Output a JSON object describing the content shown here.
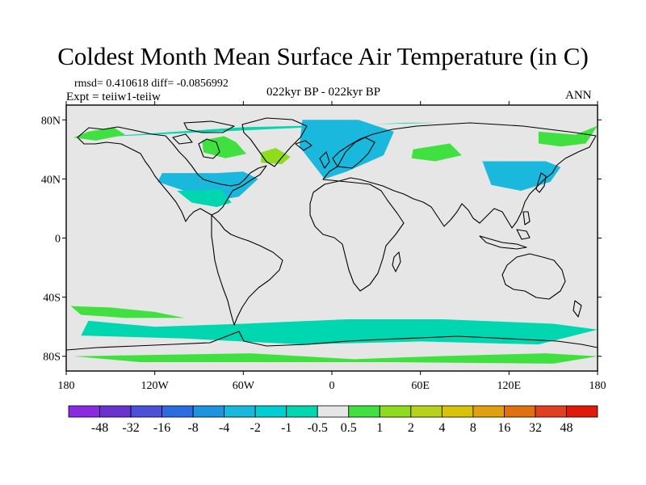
{
  "title": "Coldest Month Mean Surface Air Temperature (in C)",
  "stats": "rmsd= 0.410618 diff= -0.0856992",
  "experiment": "Expt = teiiw1-teiiw",
  "period": "022kyr BP - 022kyr BP",
  "season": "ANN",
  "map": {
    "projection": "cylindrical-equidistant",
    "lon_range": [
      -180,
      180
    ],
    "lat_range": [
      -90,
      90
    ],
    "x_ticks": [
      {
        "lon": -180,
        "label": "180"
      },
      {
        "lon": -120,
        "label": "120W"
      },
      {
        "lon": -60,
        "label": "60W"
      },
      {
        "lon": 0,
        "label": "0"
      },
      {
        "lon": 60,
        "label": "60E"
      },
      {
        "lon": 120,
        "label": "120E"
      },
      {
        "lon": 180,
        "label": "180"
      }
    ],
    "y_ticks": [
      {
        "lat": 80,
        "label": "80N"
      },
      {
        "lat": 40,
        "label": "40N"
      },
      {
        "lat": 0,
        "label": "0"
      },
      {
        "lat": -40,
        "label": "40S"
      },
      {
        "lat": -80,
        "label": "80S"
      }
    ],
    "background_color": "#e6e6e6",
    "anomaly_regions": [
      {
        "bin": "-1 to -0.5",
        "color": "#00d6b0",
        "lon": [
          -165,
          -60,
          72,
          50
        ],
        "lat": [
          68,
          75,
          78,
          78
        ]
      },
      {
        "bin": "-4 to -2",
        "color": "#19b8dc",
        "lon": [
          -115,
          -78,
          -60,
          -50,
          -63,
          -80,
          -100,
          -118
        ],
        "lat": [
          44,
          44,
          45,
          40,
          28,
          25,
          32,
          38
        ]
      },
      {
        "bin": "-1 to -0.5",
        "color": "#00d6b0",
        "lon": [
          -105,
          -75,
          -68,
          -78,
          -95
        ],
        "lat": [
          32,
          33,
          24,
          21,
          24
        ]
      },
      {
        "bin": "-4 to -2",
        "color": "#19b8dc",
        "lon": [
          -20,
          18,
          42,
          35,
          10,
          -5,
          -22
        ],
        "lat": [
          80,
          80,
          72,
          56,
          45,
          40,
          62
        ]
      },
      {
        "bin": "-4 to -2",
        "color": "#19b8dc",
        "lon": [
          102,
          145,
          155,
          148,
          128,
          108
        ],
        "lat": [
          52,
          52,
          48,
          38,
          32,
          36
        ]
      },
      {
        "bin": "-1 to -0.5",
        "color": "#00d6b0",
        "lon": [
          -165,
          -120,
          -60,
          10,
          75,
          150,
          180,
          140,
          60,
          -20,
          -100,
          -170
        ],
        "lat": [
          -56,
          -60,
          -58,
          -55,
          -55,
          -58,
          -62,
          -72,
          -70,
          -72,
          -68,
          -66
        ]
      },
      {
        "bin": "0.5 to 1",
        "color": "#40e040",
        "lon": [
          -165,
          -148,
          -140,
          -160,
          -175
        ],
        "lat": [
          72,
          75,
          70,
          66,
          68
        ]
      },
      {
        "bin": "0.5 to 1",
        "color": "#40e040",
        "lon": [
          -88,
          -73,
          -65,
          -58,
          -72,
          -87
        ],
        "lat": [
          66,
          69,
          65,
          57,
          54,
          58
        ]
      },
      {
        "bin": "1 to 2",
        "color": "#8fdc1f",
        "lon": [
          -48,
          -38,
          -28,
          -34,
          -48
        ],
        "lat": [
          58,
          61,
          55,
          50,
          51
        ]
      },
      {
        "bin": "0.5 to 1",
        "color": "#40e040",
        "lon": [
          -175,
          -55,
          15,
          70,
          145,
          180,
          150,
          40,
          -40,
          -130
        ],
        "lat": [
          -80,
          -78,
          -82,
          -80,
          -78,
          -80,
          -85,
          -84,
          -84,
          -84
        ]
      },
      {
        "bin": "0.5 to 1",
        "color": "#40e040",
        "lon": [
          -177,
          -150,
          -120,
          -100,
          -140,
          -170
        ],
        "lat": [
          -46,
          -47,
          -50,
          -54,
          -54,
          -52
        ]
      },
      {
        "bin": "0.5 to 1",
        "color": "#40e040",
        "lon": [
          55,
          80,
          88,
          70,
          54
        ],
        "lat": [
          60,
          64,
          56,
          52,
          54
        ]
      },
      {
        "bin": "0.5 to 1",
        "color": "#40e040",
        "lon": [
          140,
          165,
          180,
          172,
          155,
          140
        ],
        "lat": [
          72,
          70,
          76,
          64,
          62,
          64
        ]
      }
    ]
  },
  "colorbar": {
    "colors": [
      "#8a2be2",
      "#6a33cf",
      "#4a50d8",
      "#2d6ce0",
      "#1e93e0",
      "#19b8dc",
      "#00ced1",
      "#00d6b0",
      "#e6e6e6",
      "#40e040",
      "#8fdc1f",
      "#b8d21a",
      "#d8c20a",
      "#e0a010",
      "#e07010",
      "#e04020",
      "#e01a0a"
    ],
    "labels": [
      "-48",
      "-32",
      "-16",
      "-8",
      "-4",
      "-2",
      "-1",
      "-0.5",
      "0.5",
      "1",
      "2",
      "4",
      "8",
      "16",
      "32",
      "48"
    ]
  }
}
